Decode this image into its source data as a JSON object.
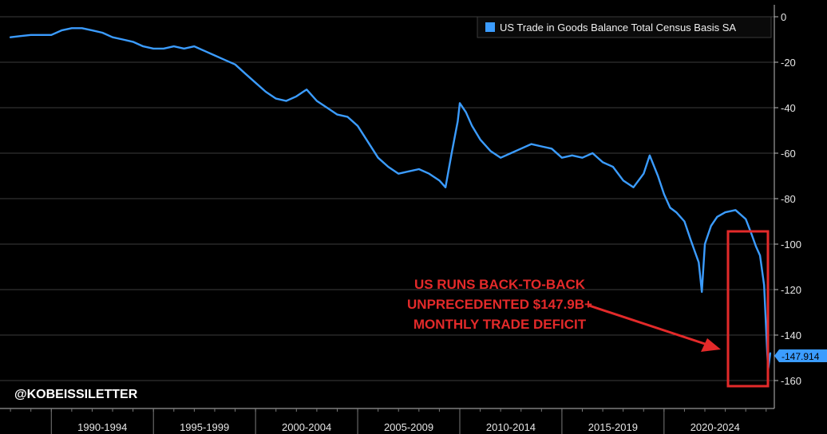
{
  "chart_data": {
    "type": "line",
    "title": "",
    "xlabel": "",
    "ylabel": "",
    "x_periods": [
      "1990-1994",
      "1995-1999",
      "2000-2004",
      "2005-2009",
      "2010-2014",
      "2015-2019",
      "2020-2024"
    ],
    "x_range": [
      1987.8,
      2025.4
    ],
    "ylim": [
      -165,
      3
    ],
    "yticks": [
      0,
      -20,
      -40,
      -60,
      -80,
      -100,
      -120,
      -140,
      -160
    ],
    "grid": true,
    "legend_position": "top-right",
    "colors": {
      "line": "#3b9cff",
      "background": "#000000",
      "grid": "#3c3c3c",
      "annotation": "#e32a2a"
    },
    "series": [
      {
        "name": "US Trade in Goods Balance Total Census Basis SA",
        "points": [
          [
            1988.0,
            -9
          ],
          [
            1988.5,
            -8.5
          ],
          [
            1989.0,
            -8
          ],
          [
            1989.5,
            -8
          ],
          [
            1990.0,
            -8
          ],
          [
            1990.5,
            -6
          ],
          [
            1991.0,
            -5
          ],
          [
            1991.5,
            -5
          ],
          [
            1992.0,
            -6
          ],
          [
            1992.5,
            -7
          ],
          [
            1993.0,
            -9
          ],
          [
            1993.5,
            -10
          ],
          [
            1994.0,
            -11
          ],
          [
            1994.5,
            -13
          ],
          [
            1995.0,
            -14
          ],
          [
            1995.5,
            -14
          ],
          [
            1996.0,
            -13
          ],
          [
            1996.5,
            -14
          ],
          [
            1997.0,
            -13
          ],
          [
            1997.5,
            -15
          ],
          [
            1998.0,
            -17
          ],
          [
            1998.5,
            -19
          ],
          [
            1999.0,
            -21
          ],
          [
            1999.5,
            -25
          ],
          [
            2000.0,
            -29
          ],
          [
            2000.5,
            -33
          ],
          [
            2001.0,
            -36
          ],
          [
            2001.5,
            -37
          ],
          [
            2002.0,
            -35
          ],
          [
            2002.5,
            -32
          ],
          [
            2003.0,
            -37
          ],
          [
            2003.5,
            -40
          ],
          [
            2004.0,
            -43
          ],
          [
            2004.5,
            -44
          ],
          [
            2005.0,
            -48
          ],
          [
            2005.5,
            -55
          ],
          [
            2006.0,
            -62
          ],
          [
            2006.5,
            -66
          ],
          [
            2007.0,
            -69
          ],
          [
            2007.5,
            -68
          ],
          [
            2008.0,
            -67
          ],
          [
            2008.5,
            -69
          ],
          [
            2009.0,
            -72
          ],
          [
            2009.3,
            -75
          ],
          [
            2009.6,
            -60
          ],
          [
            2009.9,
            -46
          ],
          [
            2010.0,
            -38
          ],
          [
            2010.3,
            -42
          ],
          [
            2010.6,
            -48
          ],
          [
            2011.0,
            -54
          ],
          [
            2011.5,
            -59
          ],
          [
            2012.0,
            -62
          ],
          [
            2012.5,
            -60
          ],
          [
            2013.0,
            -58
          ],
          [
            2013.5,
            -56
          ],
          [
            2014.0,
            -57
          ],
          [
            2014.5,
            -58
          ],
          [
            2015.0,
            -62
          ],
          [
            2015.5,
            -61
          ],
          [
            2016.0,
            -62
          ],
          [
            2016.5,
            -60
          ],
          [
            2017.0,
            -64
          ],
          [
            2017.5,
            -66
          ],
          [
            2018.0,
            -72
          ],
          [
            2018.5,
            -75
          ],
          [
            2019.0,
            -69
          ],
          [
            2019.3,
            -61
          ],
          [
            2019.7,
            -70
          ],
          [
            2020.0,
            -78
          ],
          [
            2020.3,
            -84
          ],
          [
            2020.6,
            -86
          ],
          [
            2021.0,
            -90
          ],
          [
            2021.3,
            -98
          ],
          [
            2021.5,
            -103
          ],
          [
            2021.7,
            -108
          ],
          [
            2021.85,
            -121
          ],
          [
            2022.0,
            -100
          ],
          [
            2022.3,
            -92
          ],
          [
            2022.6,
            -88
          ],
          [
            2023.0,
            -86
          ],
          [
            2023.5,
            -85
          ],
          [
            2024.0,
            -89
          ],
          [
            2024.3,
            -96
          ],
          [
            2024.5,
            -101
          ],
          [
            2024.7,
            -105
          ],
          [
            2024.9,
            -118
          ],
          [
            2025.05,
            -147
          ],
          [
            2025.1,
            -155
          ],
          [
            2025.2,
            -148
          ]
        ]
      }
    ],
    "last_value_label": "-147.914",
    "annotation_lines": [
      "US RUNS BACK-TO-BACK",
      "UNPRECEDENTED $147.9B+",
      "MONTHLY TRADE DEFICIT"
    ],
    "watermark": "@KOBEISSILETTER"
  }
}
